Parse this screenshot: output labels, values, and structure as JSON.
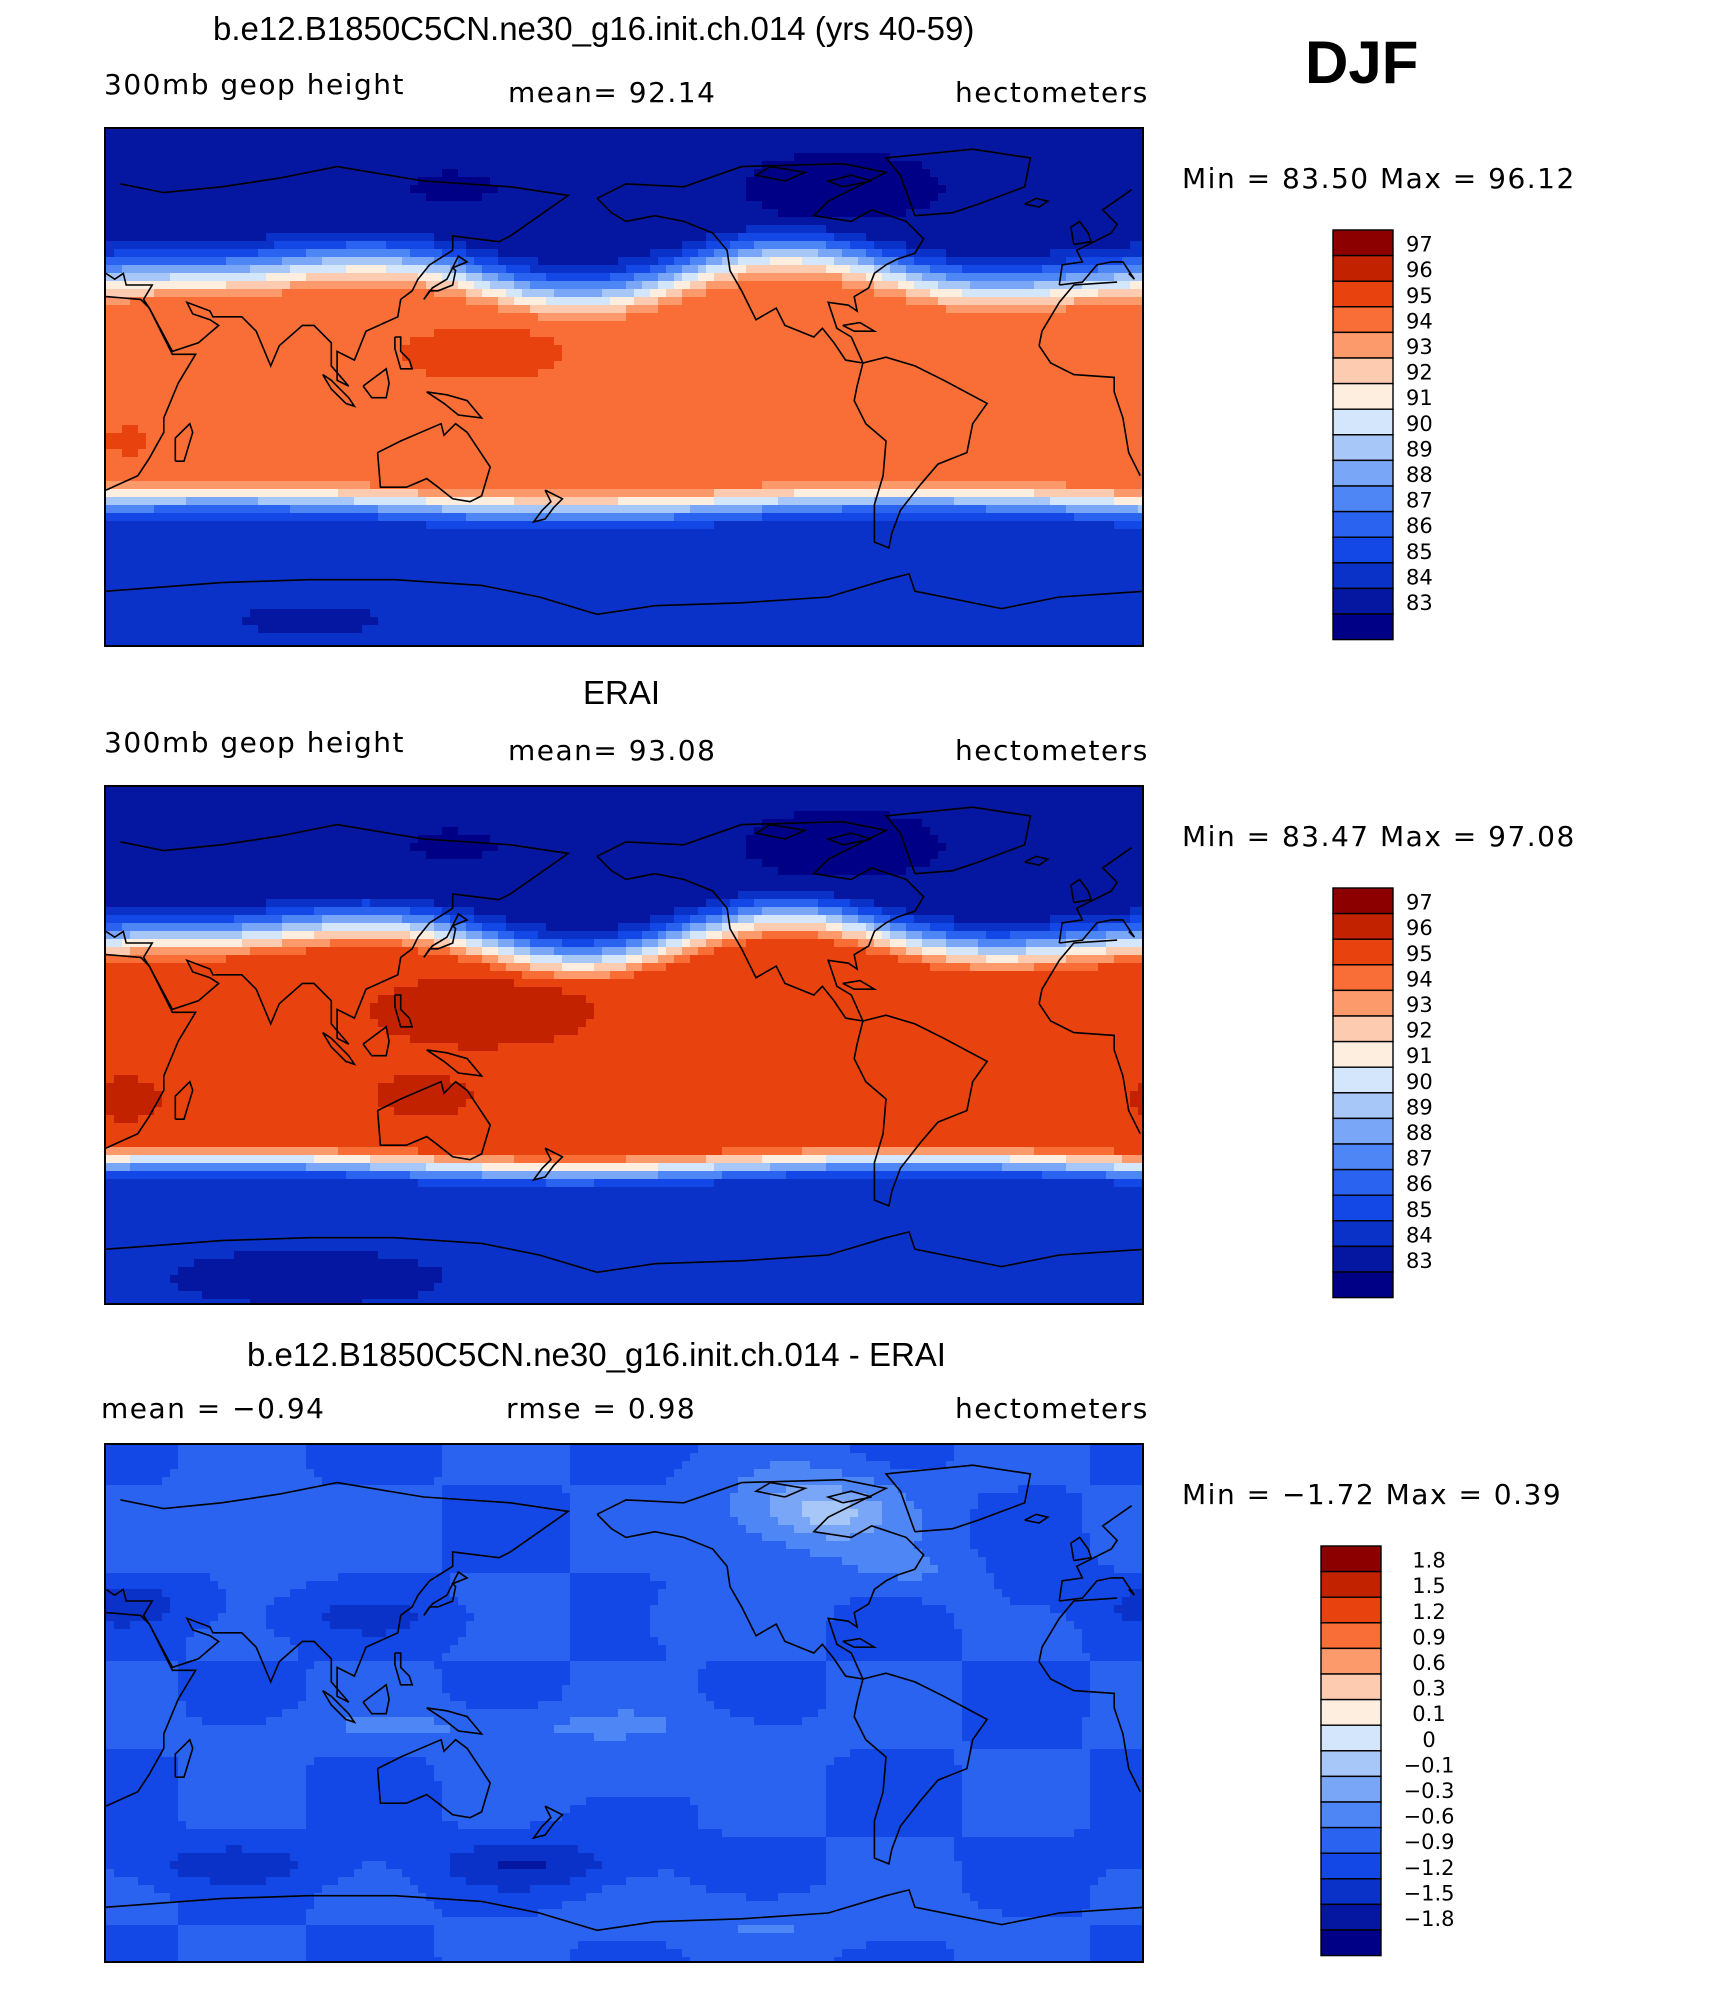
{
  "season": "DJF",
  "panels": [
    {
      "title": "b.e12.B1850C5CN.ne30_g16.init.ch.014 (yrs 40-59)",
      "left_label": "300mb  geop  height",
      "center_label": "mean=   92.14",
      "right_label": "hectometers",
      "minmax": "Min  =    83.50  Max  =    96.12",
      "palette": "abs",
      "colorbar_labels": [
        "97",
        "96",
        "95",
        "94",
        "93",
        "92",
        "91",
        "90",
        "89",
        "88",
        "87",
        "86",
        "85",
        "84",
        "83"
      ],
      "field": {
        "type": "absolute",
        "eq": 94.6,
        "pole_n": 83.8,
        "pole_s": 84.5,
        "north_lat": 40,
        "south_lat": -40,
        "north_width": 13,
        "south_width": 9
      }
    },
    {
      "title": "ERAI",
      "left_label": "300mb  geop  height",
      "center_label": "mean=   93.08",
      "right_label": "hectometers",
      "minmax": "Min  =    83.47  Max  =    97.08",
      "palette": "abs",
      "colorbar_labels": [
        "97",
        "96",
        "95",
        "94",
        "93",
        "92",
        "91",
        "90",
        "89",
        "88",
        "87",
        "86",
        "85",
        "84",
        "83"
      ],
      "field": {
        "type": "absolute",
        "eq": 95.8,
        "pole_n": 83.8,
        "pole_s": 84.3,
        "north_lat": 38,
        "south_lat": -41,
        "north_width": 12,
        "south_width": 8
      }
    },
    {
      "title": "b.e12.B1850C5CN.ne30_g16.init.ch.014 - ERAI",
      "left_label": "mean  =    −0.94",
      "center_label": "rmse  =     0.98",
      "right_label": "hectometers",
      "minmax": "Min  =    −1.72  Max  =     0.39",
      "palette": "diff",
      "colorbar_labels": [
        "1.8",
        "1.5",
        "1.2",
        "0.9",
        "0.6",
        "0.3",
        "0.1",
        "0",
        "−0.1",
        "−0.3",
        "−0.6",
        "−0.9",
        "−1.2",
        "−1.5",
        "−1.8"
      ],
      "field": {
        "type": "difference",
        "base": -0.9,
        "min": -1.72,
        "max": 0.39
      }
    }
  ],
  "colors": {
    "abs_palette": [
      "#000087",
      "#0517a0",
      "#0a32c8",
      "#1448e6",
      "#2a63f0",
      "#4f86f5",
      "#7aa6f7",
      "#a8c7f9",
      "#d4e6fb",
      "#fdeee0",
      "#fccbb0",
      "#fc9a6c",
      "#f86e36",
      "#e8420e",
      "#c22200",
      "#8c0000"
    ],
    "diff_palette": [
      "#000087",
      "#0517a0",
      "#0a32c8",
      "#1448e6",
      "#2a63f0",
      "#4f86f5",
      "#7aa6f7",
      "#a8c7f9",
      "#d4e6fb",
      "#fdeee0",
      "#fccbb0",
      "#fc9a6c",
      "#f86e36",
      "#e8420e",
      "#c22200",
      "#8c0000"
    ]
  }
}
